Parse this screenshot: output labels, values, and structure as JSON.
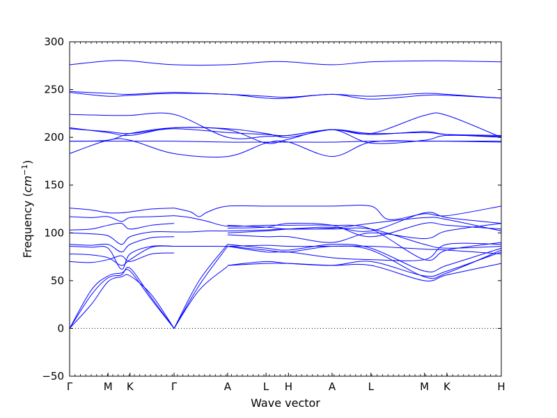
{
  "chart_data": {
    "type": "line",
    "xlabel": "Wave vector",
    "ylabel": "Frequency",
    "ylabel_unit": "cm",
    "ylabel_unit_power": "−1",
    "ylim": [
      -50,
      300
    ],
    "yticks": [
      -50,
      0,
      50,
      100,
      150,
      200,
      250,
      300
    ],
    "y_tick_labels": [
      "−50",
      "0",
      "50",
      "100",
      "150",
      "200",
      "250",
      "300"
    ],
    "x_high_symmetry": [
      {
        "label": "Γ",
        "pos": 0.0
      },
      {
        "label": "M",
        "pos": 0.089
      },
      {
        "label": "K",
        "pos": 0.14
      },
      {
        "label": "Γ",
        "pos": 0.242
      },
      {
        "label": "A",
        "pos": 0.366
      },
      {
        "label": "L",
        "pos": 0.455
      },
      {
        "label": "H",
        "pos": 0.507
      },
      {
        "label": "A",
        "pos": 0.608
      },
      {
        "label": "L",
        "pos": 0.698
      },
      {
        "label": "M",
        "pos": 0.822
      },
      {
        "label": "K",
        "pos": 0.874
      },
      {
        "label": "H",
        "pos": 1.0
      }
    ],
    "zero_line": "dotted",
    "line_color": "#0000ff",
    "bands": [
      {
        "x": [
          0,
          0.05,
          0.089,
          0.12,
          0.14,
          0.19,
          0.242
        ],
        "y": [
          0,
          35,
          53,
          56,
          63,
          32,
          0
        ]
      },
      {
        "x": [
          0,
          0.05,
          0.089,
          0.12,
          0.14,
          0.19,
          0.242
        ],
        "y": [
          0,
          40,
          55,
          58,
          60,
          30,
          0
        ]
      },
      {
        "x": [
          0,
          0.05,
          0.089,
          0.12,
          0.14,
          0.19,
          0.242
        ],
        "y": [
          0,
          25,
          49,
          54,
          55,
          35,
          0
        ]
      },
      {
        "x": [
          0.242,
          0.3,
          0.366
        ],
        "y": [
          0,
          40,
          65
        ]
      },
      {
        "x": [
          0.242,
          0.3,
          0.366
        ],
        "y": [
          0,
          45,
          86
        ]
      },
      {
        "x": [
          0.242,
          0.3,
          0.366
        ],
        "y": [
          0,
          50,
          88
        ]
      },
      {
        "x": [
          0,
          0.05,
          0.089,
          0.12,
          0.14,
          0.19,
          0.242
        ],
        "y": [
          70,
          69,
          72,
          76,
          70,
          78,
          79
        ]
      },
      {
        "x": [
          0,
          0.05,
          0.089,
          0.12,
          0.14,
          0.19,
          0.242
        ],
        "y": [
          78,
          77,
          74,
          66,
          72,
          85,
          86
        ]
      },
      {
        "x": [
          0,
          0.05,
          0.089,
          0.12,
          0.14,
          0.19,
          0.242
        ],
        "y": [
          86,
          85,
          84,
          62,
          78,
          86,
          86
        ]
      },
      {
        "x": [
          0,
          0.05,
          0.089,
          0.12,
          0.14,
          0.19,
          0.242
        ],
        "y": [
          88,
          87,
          88,
          80,
          88,
          95,
          96
        ]
      },
      {
        "x": [
          0,
          0.05,
          0.089,
          0.12,
          0.14,
          0.19,
          0.242
        ],
        "y": [
          100,
          99,
          97,
          88,
          96,
          101,
          101
        ]
      },
      {
        "x": [
          0,
          0.05,
          0.089,
          0.12,
          0.14,
          0.19,
          0.242
        ],
        "y": [
          103,
          104,
          108,
          110,
          104,
          108,
          110
        ]
      },
      {
        "x": [
          0,
          0.05,
          0.089,
          0.12,
          0.14,
          0.19,
          0.242
        ],
        "y": [
          117,
          116,
          117,
          112,
          116,
          117,
          118
        ]
      },
      {
        "x": [
          0,
          0.05,
          0.089,
          0.12,
          0.14,
          0.19,
          0.242
        ],
        "y": [
          126,
          124,
          121,
          121,
          122,
          125,
          126
        ]
      },
      {
        "x": [
          0.242,
          0.28,
          0.32,
          0.366,
          0.455,
          0.507,
          0.608,
          0.698,
          0.822,
          0.874,
          1.0
        ],
        "y": [
          86,
          86,
          86,
          86,
          87,
          86,
          86,
          86,
          83,
          82,
          78
        ]
      },
      {
        "x": [
          0.242,
          0.28,
          0.32,
          0.366,
          0.455,
          0.507,
          0.608,
          0.698,
          0.822,
          0.874,
          1.0
        ],
        "y": [
          101,
          101,
          102,
          102,
          103,
          104,
          104,
          104,
          88,
          84,
          86
        ]
      },
      {
        "x": [
          0.242,
          0.28,
          0.32,
          0.366,
          0.455,
          0.507,
          0.608,
          0.698,
          0.822,
          0.874,
          1.0
        ],
        "y": [
          118,
          116,
          112,
          107,
          108,
          108,
          108,
          104,
          72,
          82,
          90
        ]
      },
      {
        "x": [
          0.242,
          0.28,
          0.3,
          0.32,
          0.366,
          0.455,
          0.507,
          0.608,
          0.698,
          0.74,
          0.822,
          0.874,
          1.0
        ],
        "y": [
          126,
          122,
          117,
          122,
          128,
          128,
          128,
          128,
          128,
          114,
          120,
          118,
          128
        ]
      },
      {
        "x": [
          0.366,
          0.455,
          0.507,
          0.608,
          0.698,
          0.822,
          0.874,
          1.0
        ],
        "y": [
          66,
          70,
          68,
          66,
          70,
          55,
          60,
          80
        ]
      },
      {
        "x": [
          0.366,
          0.455,
          0.507,
          0.608,
          0.698,
          0.822,
          0.874,
          1.0
        ],
        "y": [
          66,
          68,
          68,
          66,
          66,
          50,
          56,
          68
        ]
      },
      {
        "x": [
          0.366,
          0.455,
          0.507,
          0.608,
          0.698,
          0.822,
          0.874,
          1.0
        ],
        "y": [
          86,
          82,
          80,
          86,
          82,
          54,
          58,
          82
        ]
      },
      {
        "x": [
          0.366,
          0.455,
          0.507,
          0.608,
          0.698,
          0.822,
          0.874,
          1.0
        ],
        "y": [
          88,
          84,
          82,
          88,
          84,
          60,
          66,
          84
        ]
      },
      {
        "x": [
          0.366,
          0.455,
          0.507,
          0.608,
          0.698,
          0.822,
          0.874,
          1.0
        ],
        "y": [
          86,
          80,
          80,
          74,
          72,
          72,
          88,
          88
        ]
      },
      {
        "x": [
          0.366,
          0.455,
          0.507,
          0.608,
          0.698,
          0.822,
          0.874,
          1.0
        ],
        "y": [
          98,
          96,
          96,
          90,
          100,
          94,
          102,
          110
        ]
      },
      {
        "x": [
          0.366,
          0.455,
          0.507,
          0.608,
          0.698,
          0.822,
          0.874,
          1.0
        ],
        "y": [
          105,
          106,
          110,
          108,
          96,
          110,
          108,
          104
        ]
      },
      {
        "x": [
          0.366,
          0.455,
          0.507,
          0.608,
          0.698,
          0.822,
          0.874,
          1.0
        ],
        "y": [
          108,
          106,
          104,
          105,
          110,
          116,
          114,
          102
        ]
      },
      {
        "x": [
          0.366,
          0.455,
          0.507,
          0.608,
          0.698,
          0.822,
          0.874,
          1.0
        ],
        "y": [
          100,
          102,
          104,
          106,
          102,
          121,
          116,
          110
        ]
      },
      {
        "x": [
          0,
          0.089,
          0.14,
          0.242,
          0.366,
          0.455,
          0.507,
          0.608,
          0.698,
          0.822,
          0.874,
          1.0
        ],
        "y": [
          276,
          280,
          280,
          276,
          276,
          279,
          279,
          276,
          279,
          280,
          280,
          279
        ]
      },
      {
        "x": [
          0,
          0.089,
          0.14,
          0.242,
          0.366,
          0.455,
          0.507,
          0.608,
          0.698,
          0.822,
          0.874,
          1.0
        ],
        "y": [
          248,
          246,
          245,
          247,
          245,
          243,
          242,
          245,
          243,
          246,
          245,
          241
        ]
      },
      {
        "x": [
          0,
          0.089,
          0.14,
          0.242,
          0.366,
          0.455,
          0.507,
          0.608,
          0.698,
          0.822,
          0.874,
          1.0
        ],
        "y": [
          247,
          243,
          244,
          246,
          245,
          241,
          241,
          245,
          240,
          244,
          244,
          241
        ]
      },
      {
        "x": [
          0,
          0.089,
          0.14,
          0.242,
          0.366,
          0.455,
          0.507,
          0.608,
          0.698,
          0.822,
          0.874,
          1.0
        ],
        "y": [
          224,
          223,
          223,
          224,
          200,
          201,
          202,
          208,
          204,
          223,
          223,
          200
        ]
      },
      {
        "x": [
          0,
          0.089,
          0.14,
          0.242,
          0.366,
          0.455,
          0.507,
          0.608,
          0.698,
          0.822,
          0.874,
          1.0
        ],
        "y": [
          210,
          205,
          202,
          210,
          209,
          204,
          200,
          208,
          204,
          205,
          203,
          202
        ]
      },
      {
        "x": [
          0,
          0.089,
          0.14,
          0.242,
          0.366,
          0.455,
          0.507,
          0.608,
          0.698,
          0.822,
          0.874,
          1.0
        ],
        "y": [
          209,
          206,
          204,
          209,
          205,
          203,
          202,
          208,
          203,
          206,
          203,
          200
        ]
      },
      {
        "x": [
          0,
          0.089,
          0.14,
          0.242,
          0.366,
          0.455,
          0.507,
          0.608,
          0.698,
          0.822,
          0.874,
          1.0
        ],
        "y": [
          196,
          197,
          204,
          210,
          208,
          194,
          198,
          208,
          194,
          197,
          202,
          201
        ]
      },
      {
        "x": [
          0,
          0.089,
          0.14,
          0.242,
          0.366,
          0.455,
          0.507,
          0.608,
          0.698,
          0.822,
          0.874,
          1.0
        ],
        "y": [
          196,
          196,
          196,
          196,
          195,
          195,
          195,
          195,
          196,
          196,
          196,
          195
        ]
      },
      {
        "x": [
          0,
          0.089,
          0.14,
          0.242,
          0.366,
          0.455,
          0.507,
          0.608,
          0.698,
          0.822,
          0.874,
          1.0
        ],
        "y": [
          183,
          197,
          197,
          183,
          180,
          194,
          195,
          180,
          195,
          196,
          196,
          196
        ]
      }
    ]
  }
}
